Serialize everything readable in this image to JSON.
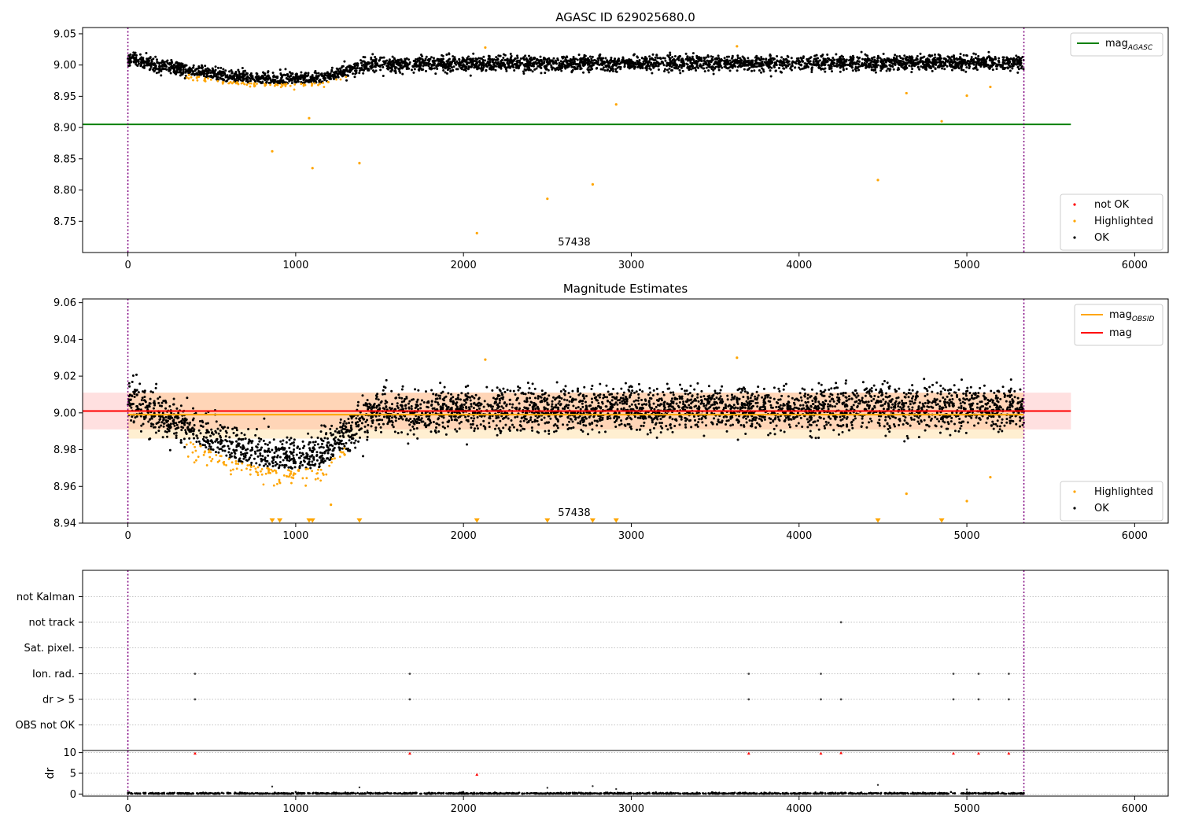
{
  "chart_data": [
    {
      "type": "scatter",
      "title": "AGASC ID 629025680.0",
      "xlim": [
        -270,
        6200
      ],
      "ylim": [
        8.7,
        9.06
      ],
      "x_ticks": [
        0,
        1000,
        2000,
        3000,
        4000,
        5000,
        6000
      ],
      "y_ticks": [
        8.75,
        8.8,
        8.85,
        8.9,
        8.95,
        9.0,
        9.05
      ],
      "y_tick_labels": [
        "8.75",
        "8.80",
        "8.85",
        "8.90",
        "8.95",
        "9.00",
        "9.05"
      ],
      "vlines": [
        0,
        5340
      ],
      "hlines": [
        {
          "name": "mag",
          "subscript": "AGASC",
          "y": 8.905,
          "x_end": 5620,
          "color": "#008000"
        }
      ],
      "annotation": "57438",
      "annotation_x": 2660,
      "legend_lines": [
        {
          "label": "mag",
          "subscript": "AGASC",
          "color": "#008000"
        }
      ],
      "legend_points": [
        {
          "label": "not OK",
          "color": "#ff0000"
        },
        {
          "label": "Highlighted",
          "color": "#ffa500"
        },
        {
          "label": "OK",
          "color": "#000000"
        }
      ],
      "highlighted_outliers": [
        {
          "x": 860,
          "y": 8.862
        },
        {
          "x": 1080,
          "y": 8.915
        },
        {
          "x": 1100,
          "y": 8.835
        },
        {
          "x": 1380,
          "y": 8.843
        },
        {
          "x": 2080,
          "y": 8.731
        },
        {
          "x": 2130,
          "y": 9.028
        },
        {
          "x": 2500,
          "y": 8.786
        },
        {
          "x": 2770,
          "y": 8.809
        },
        {
          "x": 2910,
          "y": 8.937
        },
        {
          "x": 3630,
          "y": 9.03
        },
        {
          "x": 4470,
          "y": 8.816
        },
        {
          "x": 4640,
          "y": 8.955
        },
        {
          "x": 4850,
          "y": 8.91
        },
        {
          "x": 5000,
          "y": 8.951
        },
        {
          "x": 5140,
          "y": 8.965
        }
      ],
      "ok_trend": [
        [
          0,
          9.01
        ],
        [
          300,
          8.995
        ],
        [
          600,
          8.98
        ],
        [
          900,
          8.977
        ],
        [
          1150,
          8.978
        ],
        [
          1300,
          8.99
        ],
        [
          1450,
          9.002
        ],
        [
          5340,
          9.004
        ]
      ]
    },
    {
      "type": "scatter",
      "title": "Magnitude Estimates",
      "xlim": [
        -270,
        6200
      ],
      "ylim": [
        8.94,
        9.062
      ],
      "x_ticks": [
        0,
        1000,
        2000,
        3000,
        4000,
        5000,
        6000
      ],
      "y_ticks": [
        8.94,
        8.96,
        8.98,
        9.0,
        9.02,
        9.04,
        9.06
      ],
      "y_tick_labels": [
        "8.94",
        "8.96",
        "8.98",
        "9.00",
        "9.02",
        "9.04",
        "9.06"
      ],
      "vlines": [
        0,
        5340
      ],
      "mag_line": {
        "y": 9.001,
        "band": [
          8.991,
          9.011
        ],
        "color": "#ff0000"
      },
      "mag_obsid_segments": [
        {
          "x": [
            0,
            1350
          ],
          "y": 8.999,
          "band": [
            8.986,
            9.011
          ]
        },
        {
          "x": [
            1350,
            5340
          ],
          "y": 8.999,
          "band": [
            8.986,
            9.011
          ]
        }
      ],
      "annotation": "57438",
      "annotation_x": 2660,
      "legend_lines": [
        {
          "label": "mag",
          "subscript": "OBSID",
          "color": "#ffa500"
        },
        {
          "label": "mag",
          "subscript": "",
          "color": "#ff0000"
        }
      ],
      "legend_points": [
        {
          "label": "Highlighted",
          "color": "#ffa500"
        },
        {
          "label": "OK",
          "color": "#000000"
        }
      ],
      "below_range_markers_x": [
        860,
        905,
        1080,
        1100,
        1380,
        2080,
        2500,
        2770,
        2910,
        4470,
        4850
      ],
      "highlighted_outliers": [
        {
          "x": 2130,
          "y": 9.029
        },
        {
          "x": 3630,
          "y": 9.03
        },
        {
          "x": 1210,
          "y": 8.95
        },
        {
          "x": 4640,
          "y": 8.956
        },
        {
          "x": 5000,
          "y": 8.952
        },
        {
          "x": 5140,
          "y": 8.965
        }
      ],
      "ok_trend": [
        [
          0,
          9.008
        ],
        [
          150,
          9.0
        ],
        [
          300,
          8.994
        ],
        [
          500,
          8.985
        ],
        [
          700,
          8.978
        ],
        [
          900,
          8.975
        ],
        [
          1150,
          8.976
        ],
        [
          1300,
          8.988
        ],
        [
          1450,
          9.001
        ],
        [
          5340,
          9.003
        ]
      ]
    },
    {
      "type": "scatter",
      "title": "",
      "xlim": [
        -270,
        6200
      ],
      "x_ticks": [
        0,
        1000,
        2000,
        3000,
        4000,
        5000,
        6000
      ],
      "vlines": [
        0,
        5340
      ],
      "flag_rows": [
        "not Kalman",
        "not track",
        "Sat. pixel.",
        "Ion. rad.",
        "dr > 5",
        "OBS not OK"
      ],
      "flag_points": {
        "not track": [
          4250
        ],
        "Ion. rad.": [
          400,
          1680,
          3700,
          4130,
          4920,
          5070,
          5250
        ],
        "dr > 5": [
          400,
          1680,
          3700,
          4130,
          4250,
          4920,
          5070,
          5250
        ]
      },
      "dr_panel": {
        "ylabel": "dr",
        "ylim": [
          -0.5,
          10.5
        ],
        "y_ticks": [
          0,
          5,
          10
        ],
        "y_tick_labels": [
          "0",
          "5",
          "10"
        ],
        "not_ok_points": [
          {
            "x": 400,
            "y": 9.8
          },
          {
            "x": 1680,
            "y": 9.8
          },
          {
            "x": 2080,
            "y": 4.7
          },
          {
            "x": 3700,
            "y": 9.8
          },
          {
            "x": 4130,
            "y": 9.8
          },
          {
            "x": 4250,
            "y": 9.9
          },
          {
            "x": 4920,
            "y": 9.8
          },
          {
            "x": 5070,
            "y": 9.8
          },
          {
            "x": 5250,
            "y": 9.8
          }
        ],
        "ok_small": [
          {
            "x": 860,
            "y": 1.8
          },
          {
            "x": 1380,
            "y": 1.6
          },
          {
            "x": 2500,
            "y": 1.5
          },
          {
            "x": 2770,
            "y": 1.9
          },
          {
            "x": 2910,
            "y": 1.2
          },
          {
            "x": 4470,
            "y": 2.2
          },
          {
            "x": 5000,
            "y": 1.1
          }
        ]
      }
    }
  ],
  "colors": {
    "ok": "#000000",
    "highlighted": "#ffa500",
    "not_ok": "#ff0000",
    "vline": "#800080",
    "agasc_line": "#008000"
  }
}
